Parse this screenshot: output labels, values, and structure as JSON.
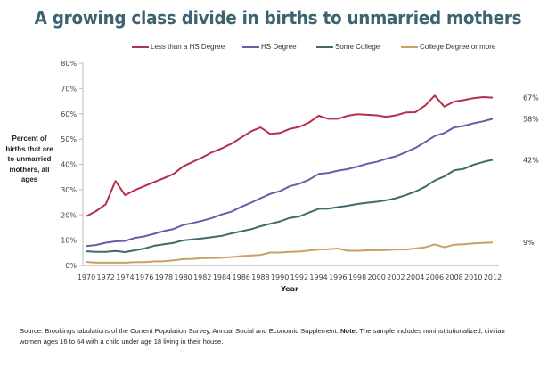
{
  "page": {
    "source_text": "Source: Brookings tabulations of the Current Population Survey, Annual Social and Economic Supplement.",
    "note_label": "Note:",
    "note_text": "The sample includes noninstitutionalized, civilian women ages 16 to 64 with a child under age 18 living in their house."
  },
  "chart_data": {
    "type": "line",
    "title": "A growing class divide in births to unmarried mothers",
    "xlabel": "Year",
    "ylabel": "Percent of births that are to unmarried mothers, all ages",
    "ylim": [
      0,
      80
    ],
    "y_ticks": [
      "0%",
      "10%",
      "20%",
      "30%",
      "40%",
      "50%",
      "60%",
      "70%",
      "80%"
    ],
    "x_ticks": [
      "1970",
      "1972",
      "1974",
      "1976",
      "1978",
      "1980",
      "1982",
      "1984",
      "1986",
      "1988",
      "1990",
      "1992",
      "1994",
      "1996",
      "1998",
      "2000",
      "2002",
      "2004",
      "2006",
      "2008",
      "2010",
      "2012"
    ],
    "grid": false,
    "legend_position": "top",
    "x": [
      1970,
      1971,
      1972,
      1973,
      1974,
      1975,
      1976,
      1977,
      1978,
      1979,
      1980,
      1981,
      1982,
      1983,
      1984,
      1985,
      1986,
      1987,
      1988,
      1989,
      1990,
      1991,
      1992,
      1993,
      1994,
      1995,
      1996,
      1997,
      1998,
      1999,
      2000,
      2001,
      2002,
      2003,
      2004,
      2005,
      2006,
      2007,
      2008,
      2009,
      2010,
      2011,
      2012
    ],
    "series": [
      {
        "name": "Less than a HS Degree",
        "color": "#b5304a",
        "end_label": "67%",
        "values": [
          19.5,
          21.5,
          24.2,
          33.4,
          27.8,
          29.8,
          31.4,
          33.0,
          34.5,
          36.2,
          39.2,
          41.0,
          42.8,
          44.8,
          46.3,
          48.2,
          50.6,
          53.0,
          54.6,
          52.0,
          52.4,
          54.0,
          54.8,
          56.5,
          59.2,
          58.0,
          58.0,
          59.2,
          59.8,
          59.6,
          59.4,
          58.8,
          59.4,
          60.5,
          60.6,
          63.2,
          67.2,
          62.8,
          64.8,
          65.4,
          66.2,
          66.6,
          66.4
        ]
      },
      {
        "name": "HS Degree",
        "color": "#6e5aa8",
        "end_label": "58%",
        "values": [
          7.7,
          8.1,
          9.0,
          9.5,
          9.7,
          10.9,
          11.5,
          12.5,
          13.6,
          14.4,
          16.0,
          16.8,
          17.7,
          18.8,
          20.2,
          21.3,
          23.2,
          24.8,
          26.6,
          28.3,
          29.4,
          31.3,
          32.3,
          33.9,
          36.2,
          36.6,
          37.5,
          38.1,
          39.1,
          40.2,
          41.0,
          42.2,
          43.2,
          44.8,
          46.5,
          48.8,
          51.2,
          52.4,
          54.6,
          55.2,
          56.2,
          57.0,
          58.0
        ]
      },
      {
        "name": "Some College",
        "color": "#3e6b6e",
        "end_label": "42%",
        "values": [
          5.6,
          5.4,
          5.4,
          5.7,
          5.3,
          6.0,
          6.7,
          7.8,
          8.4,
          8.9,
          9.9,
          10.3,
          10.7,
          11.2,
          11.7,
          12.7,
          13.5,
          14.3,
          15.5,
          16.5,
          17.4,
          18.8,
          19.4,
          20.9,
          22.4,
          22.5,
          23.1,
          23.6,
          24.3,
          24.8,
          25.2,
          25.8,
          26.6,
          27.8,
          29.2,
          31.1,
          33.6,
          35.2,
          37.6,
          38.2,
          39.8,
          40.9,
          41.8
        ]
      },
      {
        "name": "College Degree or more",
        "color": "#c9a165",
        "end_label": "9%",
        "values": [
          1.4,
          1.1,
          1.1,
          1.1,
          1.1,
          1.3,
          1.3,
          1.6,
          1.7,
          2.0,
          2.5,
          2.6,
          2.9,
          2.9,
          3.1,
          3.3,
          3.7,
          3.9,
          4.2,
          5.1,
          5.1,
          5.4,
          5.5,
          5.9,
          6.3,
          6.4,
          6.7,
          5.8,
          5.8,
          6.0,
          6.0,
          6.1,
          6.3,
          6.3,
          6.7,
          7.2,
          8.3,
          7.2,
          8.2,
          8.4,
          8.7,
          8.9,
          9.1
        ]
      }
    ]
  }
}
